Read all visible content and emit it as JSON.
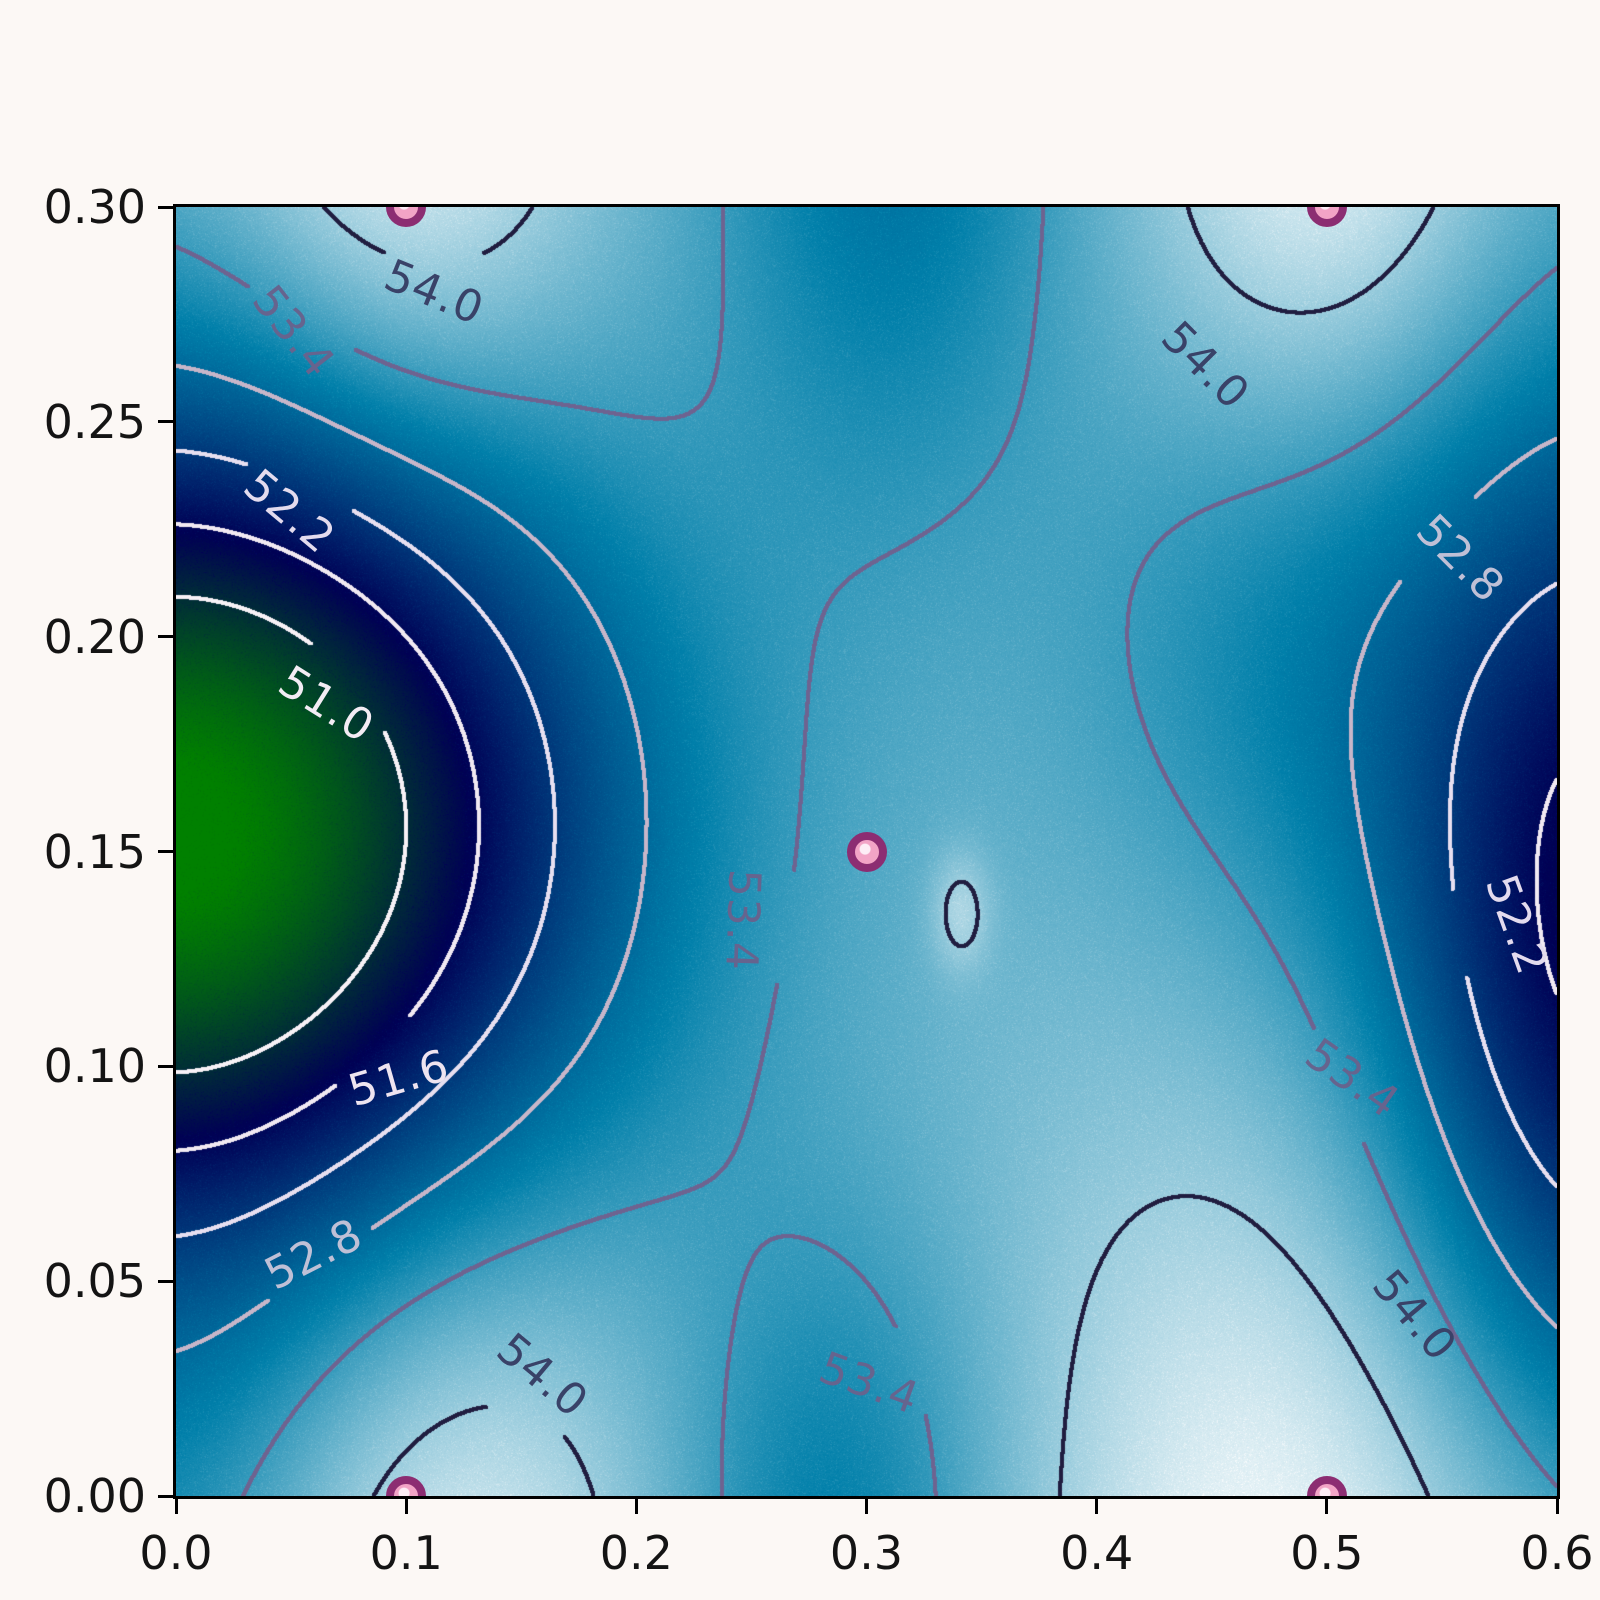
{
  "chart_data": {
    "type": "heatmap",
    "variant": "filled-contour-plot-with-labeled-isolines",
    "title": "",
    "xlabel": "",
    "ylabel": "",
    "x_range": [
      0.0,
      0.6
    ],
    "y_range": [
      0.0,
      0.3
    ],
    "grid": false,
    "legend": "none",
    "x_ticks": {
      "values": [
        0.0,
        0.1,
        0.2,
        0.3,
        0.4,
        0.5,
        0.6
      ],
      "labels": [
        "0.0",
        "0.1",
        "0.2",
        "0.3",
        "0.4",
        "0.5",
        "0.6"
      ]
    },
    "y_ticks": {
      "values": [
        0.0,
        0.05,
        0.1,
        0.15,
        0.2,
        0.25,
        0.3
      ],
      "labels": [
        "0.00",
        "0.05",
        "0.10",
        "0.15",
        "0.20",
        "0.25",
        "0.30"
      ]
    },
    "colormap": {
      "name": "ocean",
      "vmin": 50.0,
      "vmax": 54.6,
      "low_color": "#008000",
      "mid_color": "#000055",
      "high_color": "#ffffff"
    },
    "field_model": {
      "comment": "f(x,y)=base+sum(amp*exp(-((x-x0)/sx)^2-((y-y0)/sy)^2)); reconstructed surface: deep green minimum ~50 at left-center edge, dark trough at right-center edge ~51.6, five maxima ~54.2-54.4 at the marked sample points",
      "base": 53.8,
      "gaussians": [
        {
          "amp": -3.9,
          "x0": 0.0,
          "y0": 0.155,
          "sx": 0.175,
          "sy": 0.095
        },
        {
          "amp": -2.4,
          "x0": 0.625,
          "y0": 0.135,
          "sx": 0.1,
          "sy": 0.12
        },
        {
          "amp": -0.75,
          "x0": 0.285,
          "y0": -0.01,
          "sx": 0.075,
          "sy": 0.075
        },
        {
          "amp": -0.9,
          "x0": 0.31,
          "y0": 0.33,
          "sx": 0.08,
          "sy": 0.1
        },
        {
          "amp": -0.55,
          "x0": 0.48,
          "y0": 0.2,
          "sx": 0.1,
          "sy": 0.075
        },
        {
          "amp": -0.5,
          "x0": 0.0,
          "y0": -0.02,
          "sx": 0.09,
          "sy": 0.09
        },
        {
          "amp": 0.7,
          "x0": 0.1,
          "y0": 0.315,
          "sx": 0.075,
          "sy": 0.07
        },
        {
          "amp": 0.7,
          "x0": 0.5,
          "y0": 0.315,
          "sx": 0.075,
          "sy": 0.07
        },
        {
          "amp": 0.7,
          "x0": 0.115,
          "y0": -0.02,
          "sx": 0.095,
          "sy": 0.09
        },
        {
          "amp": 0.75,
          "x0": 0.485,
          "y0": -0.02,
          "sx": 0.115,
          "sy": 0.1
        },
        {
          "amp": 0.45,
          "x0": 0.341,
          "y0": 0.136,
          "sx": 0.013,
          "sy": 0.014
        }
      ]
    },
    "contour_levels": [
      {
        "value": 51.0,
        "line_color": "#f7f1f6",
        "label_color": "#f3ecf4",
        "labels": [
          {
            "text": "51.0",
            "x": 0.065,
            "y": 0.184,
            "rot": 32
          }
        ]
      },
      {
        "value": 51.6,
        "line_color": "#f1e9f2",
        "label_color": "#eee4f0",
        "labels": [
          {
            "text": "51.6",
            "x": 0.097,
            "y": 0.097,
            "rot": -16
          }
        ]
      },
      {
        "value": 52.2,
        "line_color": "#e7dff0",
        "label_color": "#e3dbee",
        "labels": [
          {
            "text": "52.2",
            "x": 0.049,
            "y": 0.229,
            "rot": 40
          },
          {
            "text": "52.2",
            "x": 0.582,
            "y": 0.133,
            "rot": 70
          }
        ]
      },
      {
        "value": 52.8,
        "line_color": "#c7b6c9",
        "label_color": "#bfc0d6",
        "labels": [
          {
            "text": "52.8",
            "x": 0.06,
            "y": 0.056,
            "rot": -27
          },
          {
            "text": "52.8",
            "x": 0.558,
            "y": 0.218,
            "rot": 45
          }
        ]
      },
      {
        "value": 53.4,
        "line_color": "#6e6390",
        "label_color": "#66648e",
        "labels": [
          {
            "text": "53.4",
            "x": 0.051,
            "y": 0.271,
            "rot": 52
          },
          {
            "text": "53.4",
            "x": 0.246,
            "y": 0.134,
            "rot": 92
          },
          {
            "text": "53.4",
            "x": 0.301,
            "y": 0.026,
            "rot": 20
          },
          {
            "text": "53.4",
            "x": 0.511,
            "y": 0.097,
            "rot": 35
          }
        ]
      },
      {
        "value": 54.0,
        "line_color": "#201d40",
        "label_color": "#394268",
        "labels": [
          {
            "text": "54.0",
            "x": 0.112,
            "y": 0.28,
            "rot": 22
          },
          {
            "text": "54.0",
            "x": 0.447,
            "y": 0.263,
            "rot": 45
          },
          {
            "text": "54.0",
            "x": 0.159,
            "y": 0.028,
            "rot": 40
          },
          {
            "text": "54.0",
            "x": 0.538,
            "y": 0.042,
            "rot": 50
          }
        ]
      }
    ],
    "sample_points": {
      "marker": "circle",
      "fill_color": "#f2a4c6",
      "edge_color": "#8c2d72",
      "points": [
        {
          "x": 0.1,
          "y": 0.3
        },
        {
          "x": 0.5,
          "y": 0.3
        },
        {
          "x": 0.3,
          "y": 0.15
        },
        {
          "x": 0.1,
          "y": 0.0
        },
        {
          "x": 0.5,
          "y": 0.0
        }
      ]
    },
    "styles": {
      "figure_background": "#fcf8f5",
      "spine_color": "#000000",
      "tick_color": "#141414"
    }
  }
}
